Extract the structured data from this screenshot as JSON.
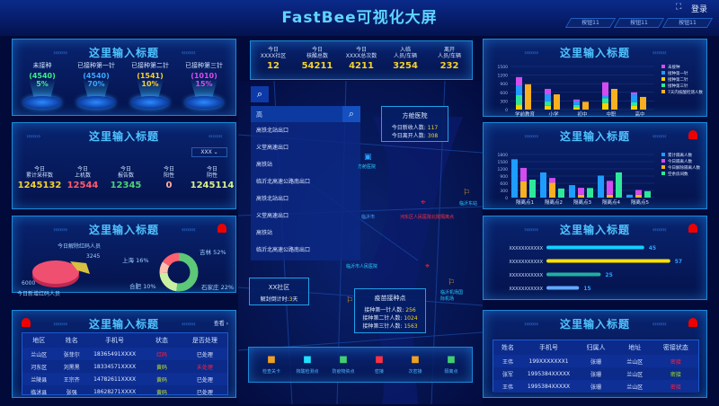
{
  "header": {
    "title": "FastBee可视化大屏",
    "tabs": [
      "按钮11",
      "按钮11",
      "按钮11"
    ],
    "login": "登录",
    "fullscreen_icon": "expand-icon"
  },
  "panel_title": "这里输入标题",
  "vaccination": {
    "items": [
      {
        "label": "未接种",
        "count": "(4540)",
        "pct": "5%",
        "color": "#3cf08a"
      },
      {
        "label": "已接种第一针",
        "count": "(4540)",
        "pct": "70%",
        "color": "#3aa8ff"
      },
      {
        "label": "已接种第二针",
        "count": "(1541)",
        "pct": "10%",
        "color": "#f5d22c"
      },
      {
        "label": "已接种第三针",
        "count": "(1010)",
        "pct": "15%",
        "color": "#d44cf0"
      }
    ]
  },
  "sampling": {
    "select": "XXX",
    "items": [
      {
        "l1": "今日",
        "l2": "累计采样数",
        "v": "1245132",
        "color": "#f5d22c"
      },
      {
        "l1": "今日",
        "l2": "上机数",
        "v": "12544",
        "color": "#ff5a6a"
      },
      {
        "l1": "今日",
        "l2": "报告数",
        "v": "12345",
        "color": "#4cd07a"
      },
      {
        "l1": "今日",
        "l2": "阳性",
        "v": "0",
        "color": "#ffb0a0"
      },
      {
        "l1": "今日",
        "l2": "阴性",
        "v": "1245114",
        "color": "#d8f08a"
      }
    ]
  },
  "redcode": {
    "pie": {
      "new_label": "今日新增红码人员",
      "new_value": "6000",
      "removed_label": "今日解除红码人员",
      "removed_value": "3245"
    },
    "donut": [
      {
        "name": "吉林",
        "pct": 52,
        "color": "#5cc878"
      },
      {
        "name": "石家庄",
        "pct": 22,
        "color": "#c8f0a0"
      },
      {
        "name": "合肥",
        "pct": 10,
        "color": "#ffc0b0"
      },
      {
        "name": "上海",
        "pct": 16,
        "color": "#ff6070"
      }
    ],
    "labels": [
      "吉林 52%",
      "石家庄 22%",
      "合肥 10%",
      "上海 16%"
    ]
  },
  "left_table": {
    "more": "查看 ›",
    "headers": [
      "地区",
      "姓名",
      "手机号",
      "状态",
      "是否处理"
    ],
    "rows": [
      [
        "兰山区",
        "张菲尔",
        "18365491XXXX",
        "红码",
        "已处理"
      ],
      [
        "河东区",
        "刘黑黑",
        "18334571XXXX",
        "黄码",
        "未处理"
      ],
      [
        "兰陵县",
        "王宗齐",
        "14782611XXXX",
        "黄码",
        "已处理"
      ],
      [
        "临沭县",
        "张强",
        "18628271XXXX",
        "黄码",
        "已处理"
      ]
    ]
  },
  "top_stats": [
    {
      "l1": "今日",
      "l2": "XXXX社区",
      "v": "12"
    },
    {
      "l1": "今日",
      "l2": "核酸总数",
      "v": "54211"
    },
    {
      "l1": "今日",
      "l2": "XXXX总次数",
      "v": "4211"
    },
    {
      "l1": "入临",
      "l2": "人员/车辆",
      "v": "3254"
    },
    {
      "l1": "离开",
      "l2": "人员/车辆",
      "v": "232"
    }
  ],
  "search": {
    "value": "高",
    "results": [
      "高铁北站出口",
      "义堂高速出口",
      "高铁站",
      "临沂北高速公路南出口",
      "高铁北站出口",
      "义堂高速出口",
      "高铁站",
      "临沂北高速公路南出口"
    ]
  },
  "map": {
    "hospital": {
      "name": "方舱医院",
      "new_label": "今日新收人数:",
      "new_value": "117",
      "leave_label": "今日离开人数:",
      "leave_value": "308"
    },
    "community": {
      "name": "XX社区",
      "label": "解封倒计时:",
      "value": "3",
      "unit": "天"
    },
    "vacc_point": {
      "name": "疫苗接种点",
      "rows": [
        {
          "l": "接种第一针人数:",
          "v": "256"
        },
        {
          "l": "接种第二针人数:",
          "v": "1024"
        },
        {
          "l": "接种第三针人数:",
          "v": "1563"
        }
      ]
    },
    "red_marker": "河东区人民医院北院隔离点",
    "labels": [
      "方舱医院",
      "临沂东站",
      "临沂市",
      "临沂市人民医院",
      "临沂机场国际机场"
    ]
  },
  "toolbar": [
    {
      "label": "检查关卡",
      "icon": "flag-icon",
      "color": "#f0a020"
    },
    {
      "label": "核酸检测点",
      "icon": "test-tube-icon",
      "color": "#20e0ff"
    },
    {
      "label": "防疫物资点",
      "icon": "supplies-icon",
      "color": "#40d070"
    },
    {
      "label": "密接",
      "icon": "close-contact-icon",
      "color": "#ff3040"
    },
    {
      "label": "次密接",
      "icon": "secondary-contact-icon",
      "color": "#f0a020"
    },
    {
      "label": "隔离点",
      "icon": "isolation-icon",
      "color": "#40d070"
    }
  ],
  "chart_data": [
    {
      "type": "bar",
      "stacked": true,
      "categories": [
        "学前教育",
        "小学",
        "初中",
        "中职",
        "高中"
      ],
      "ylim": [
        0,
        1500
      ],
      "yticks": [
        0,
        300,
        600,
        900,
        1200,
        1500
      ],
      "legend": "right",
      "series": [
        {
          "name": "接种第二针",
          "color": "#f5d400",
          "stack": "a",
          "values": [
            170,
            130,
            80,
            230,
            150
          ]
        },
        {
          "name": "接种第三针",
          "color": "#2ee89a",
          "stack": "a",
          "values": [
            330,
            150,
            80,
            170,
            100
          ]
        },
        {
          "name": "接种第一针",
          "color": "#1e9cff",
          "stack": "a",
          "values": [
            330,
            250,
            140,
            70,
            280
          ]
        },
        {
          "name": "未接种",
          "color": "#d44cf0",
          "stack": "a",
          "values": [
            300,
            190,
            50,
            480,
            70
          ]
        },
        {
          "name": "7天内核酸检测人数",
          "color": "#f8b020",
          "stack": "b",
          "values": [
            880,
            530,
            270,
            720,
            440
          ]
        }
      ],
      "legend_order": [
        "未接种",
        "接种第一针",
        "接种第二针",
        "接种第三针",
        "7天内核酸检测人数"
      ]
    },
    {
      "type": "bar",
      "stacked": true,
      "categories": [
        "隔离点1",
        "隔离点2",
        "隔离点3",
        "隔离点4",
        "隔离点5"
      ],
      "ylim": [
        0,
        1800
      ],
      "yticks": [
        0,
        300,
        600,
        900,
        1200,
        1500,
        1800
      ],
      "legend": "right",
      "series": [
        {
          "name": "累计隔离人数",
          "color": "#1e9cff",
          "stack": "a",
          "values": [
            1600,
            1050,
            520,
            920,
            120
          ]
        },
        {
          "name": "今日解除隔离人数",
          "color": "#f8b020",
          "stack": "b",
          "values": [
            680,
            620,
            120,
            120,
            120
          ]
        },
        {
          "name": "今日隔离人数",
          "color": "#d44cf0",
          "stack": "b",
          "values": [
            560,
            200,
            290,
            580,
            200
          ]
        },
        {
          "name": "空余房间数",
          "color": "#2ee89a",
          "stack": "c",
          "values": [
            750,
            380,
            400,
            1050,
            270
          ]
        }
      ],
      "legend_order": [
        "累计隔离人数",
        "今日隔离人数",
        "今日解除隔离人数",
        "空余房间数"
      ]
    },
    {
      "type": "bar",
      "orientation": "horizontal",
      "categories": [
        "XXXXXXXXXXX",
        "XXXXXXXXXXX",
        "XXXXXXXXXXX",
        "XXXXXXXXXXX"
      ],
      "values": [
        45,
        57,
        25,
        15
      ],
      "colors": [
        "#10d0ff",
        "#ffe000",
        "#20b0a0",
        "#60a8ff"
      ],
      "xlim": [
        0,
        60
      ]
    }
  ],
  "right_table": {
    "headers": [
      "姓名",
      "手机号",
      "归属人",
      "地址",
      "密接状态"
    ],
    "rows": [
      [
        "王伟",
        "199XXXXXXX1",
        "张珊",
        "兰山区",
        "密接"
      ],
      [
        "张军",
        "1995384XXXXX",
        "张珊",
        "兰山区",
        "密接"
      ],
      [
        "王伟",
        "1995384XXXXX",
        "张珊",
        "兰山区",
        "密接"
      ]
    ],
    "status_colors": [
      "#ff2040",
      "#a0e020",
      "#ff2040"
    ]
  }
}
